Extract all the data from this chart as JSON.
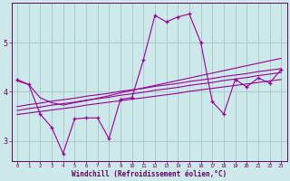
{
  "background_color": "#cce8e8",
  "grid_color": "#aacccc",
  "line_color": "#990099",
  "marker_color": "#990099",
  "xlabel": "Windchill (Refroidissement éolien,°C)",
  "xlabel_color": "#660066",
  "tick_color": "#660066",
  "ylim": [
    2.6,
    5.8
  ],
  "xlim": [
    -0.5,
    23.5
  ],
  "yticks": [
    3,
    4,
    5
  ],
  "xticks": [
    0,
    1,
    2,
    3,
    4,
    5,
    6,
    7,
    8,
    9,
    10,
    11,
    12,
    13,
    14,
    15,
    16,
    17,
    18,
    19,
    20,
    21,
    22,
    23
  ],
  "series": {
    "main": [
      4.25,
      4.15,
      3.55,
      3.28,
      2.75,
      3.45,
      3.47,
      3.47,
      3.05,
      3.85,
      3.88,
      4.65,
      5.55,
      5.42,
      5.52,
      5.58,
      5.0,
      3.8,
      3.55,
      4.25,
      4.1,
      4.28,
      4.18,
      4.45
    ],
    "upper_env": [
      4.22,
      4.15,
      3.88,
      3.78,
      3.73,
      3.78,
      3.82,
      3.87,
      3.92,
      3.98,
      4.03,
      4.08,
      4.13,
      4.18,
      4.23,
      4.28,
      4.33,
      4.38,
      4.43,
      4.48,
      4.53,
      4.58,
      4.63,
      4.68
    ],
    "reg1": [
      3.7,
      3.74,
      3.77,
      3.81,
      3.84,
      3.87,
      3.91,
      3.94,
      3.97,
      4.01,
      4.04,
      4.07,
      4.11,
      4.14,
      4.17,
      4.21,
      4.24,
      4.27,
      4.31,
      4.34,
      4.37,
      4.41,
      4.44,
      4.47
    ],
    "reg2": [
      3.62,
      3.66,
      3.69,
      3.73,
      3.76,
      3.79,
      3.83,
      3.86,
      3.89,
      3.93,
      3.96,
      3.99,
      4.03,
      4.06,
      4.09,
      4.13,
      4.16,
      4.19,
      4.23,
      4.26,
      4.29,
      4.33,
      4.36,
      4.39
    ],
    "reg3": [
      3.54,
      3.57,
      3.6,
      3.63,
      3.66,
      3.69,
      3.73,
      3.76,
      3.79,
      3.82,
      3.85,
      3.88,
      3.91,
      3.94,
      3.97,
      4.01,
      4.04,
      4.07,
      4.1,
      4.13,
      4.16,
      4.19,
      4.22,
      4.25
    ]
  }
}
